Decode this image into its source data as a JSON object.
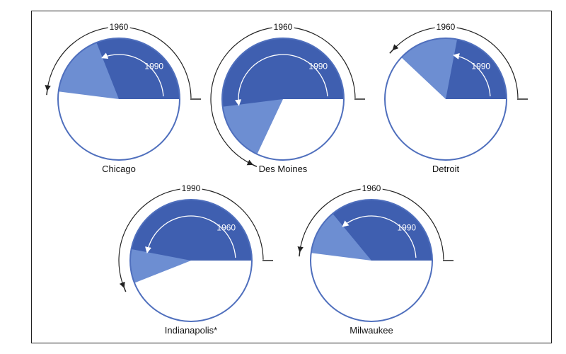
{
  "colors": {
    "dark": "#3f5fb0",
    "light": "#6d8ed2",
    "rim": "#4f6fbd",
    "bg": "#ffffff",
    "arrow_outer": "#222222",
    "arrow_inner": "#ffffff"
  },
  "chart_data": [
    {
      "type": "pie",
      "label": "Chicago",
      "outer_label": "1960",
      "inner_label": "1990",
      "outer_value_pct": 48,
      "inner_value_pct": 31
    },
    {
      "type": "pie",
      "label": "Des Moines",
      "outer_label": "1960",
      "inner_label": "1990",
      "outer_value_pct": 68,
      "inner_value_pct": 52
    },
    {
      "type": "pie",
      "label": "Detroit",
      "outer_label": "1960",
      "inner_label": "1990",
      "outer_value_pct": 38,
      "inner_value_pct": 22
    },
    {
      "type": "pie",
      "label": "Indianapolis*",
      "outer_label": "1990",
      "inner_label": "1960",
      "outer_value_pct": 56,
      "inner_value_pct": 47
    },
    {
      "type": "pie",
      "label": "Milwaukee",
      "outer_label": "1960",
      "inner_label": "1990",
      "outer_value_pct": 48,
      "inner_value_pct": 36
    }
  ]
}
